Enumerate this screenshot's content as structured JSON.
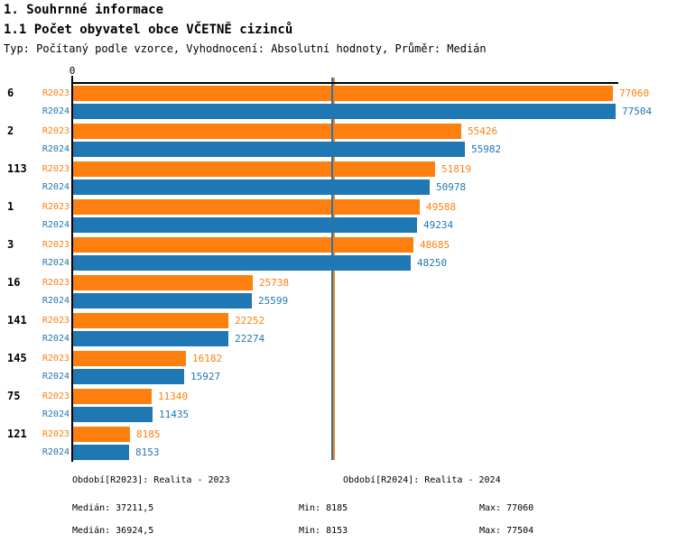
{
  "header": {
    "title": "1. Souhrnné informace",
    "subtitle": "1.1 Počet obyvatel obce VČETNĚ cizinců",
    "meta": "Typ: Počítaný podle vzorce, Vyhodnocení: Absolutní hodnoty, Průměr: Medián"
  },
  "colors": {
    "r2023_orange": "#ff7f0e",
    "r2024_blue": "#1f77b4",
    "axis_black": "#000000"
  },
  "chart_data": {
    "type": "bar",
    "orientation": "horizontal",
    "grid": false,
    "value_labels": true,
    "x_axis_tick_label": "0",
    "xlim": [
      0,
      77900
    ],
    "categories": [
      "6",
      "2",
      "113",
      "1",
      "3",
      "16",
      "141",
      "145",
      "75",
      "121"
    ],
    "series": [
      {
        "name": "R2023",
        "color": "#ff7f0e",
        "values": [
          77060,
          55426,
          51819,
          49588,
          48685,
          25738,
          22252,
          16182,
          11340,
          8185
        ],
        "median": 37211.5,
        "min": 8185,
        "max": 77060
      },
      {
        "name": "R2024",
        "color": "#1f77b4",
        "values": [
          77504,
          55982,
          50978,
          49234,
          48250,
          25599,
          22274,
          15927,
          11435,
          8153
        ],
        "median": 36924.5,
        "min": 8153,
        "max": 77504
      }
    ]
  },
  "legend": {
    "series": [
      {
        "label": "Období[R2023]: Realita - 2023",
        "median": "Medián: 37211,5",
        "min": "Min: 8185",
        "max": "Max: 77060",
        "color": "#ff7f0e"
      },
      {
        "label": "Období[R2024]: Realita - 2024",
        "median": "Medián: 36924,5",
        "min": "Min: 8153",
        "max": "Max: 77504",
        "color": "#1f77b4"
      }
    ]
  }
}
